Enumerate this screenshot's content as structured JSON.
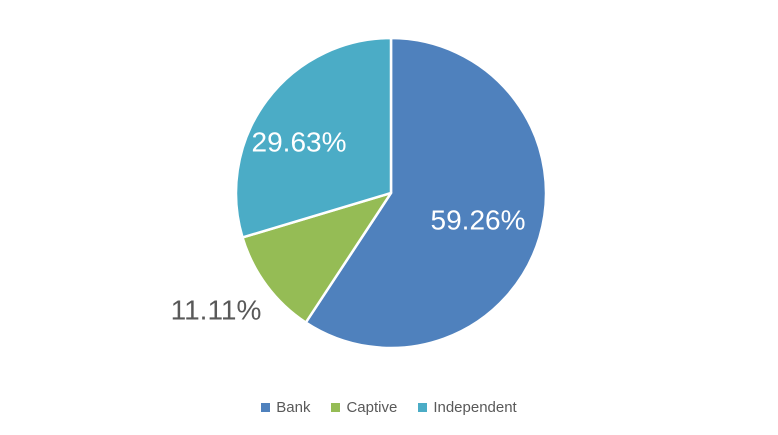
{
  "chart_data": {
    "type": "pie",
    "title": "",
    "categories": [
      "Bank",
      "Captive",
      "Independent"
    ],
    "values": [
      59.26,
      11.11,
      29.63
    ],
    "labels": [
      "59.26%",
      "11.11%",
      "29.63%"
    ],
    "colors": [
      "#4f81bd",
      "#95bc55",
      "#4bacc6"
    ],
    "slice_label_colors": [
      "#ffffff",
      "#595959",
      "#ffffff"
    ],
    "slice_border_color": "#ffffff",
    "start_angle": "top",
    "direction": "clockwise",
    "legend_position": "bottom",
    "legend": [
      {
        "label": "Bank",
        "color": "#4f81bd"
      },
      {
        "label": "Captive",
        "color": "#95bc55"
      },
      {
        "label": "Independent",
        "color": "#4bacc6"
      }
    ]
  }
}
